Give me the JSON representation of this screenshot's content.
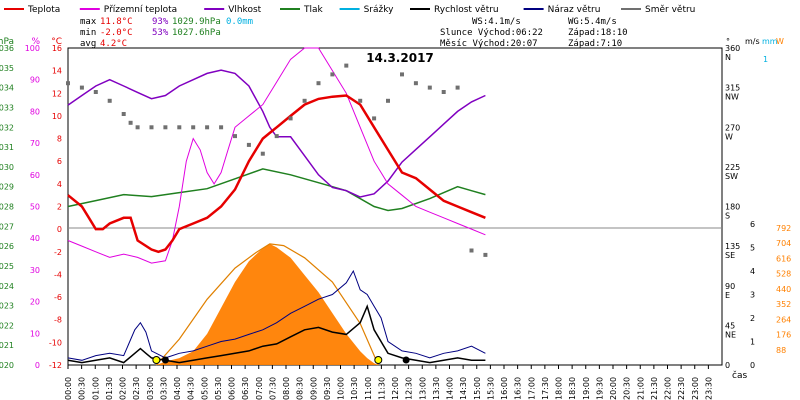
{
  "chart_data": {
    "type": "line",
    "title": "14.3.2017",
    "xlabel": "čas",
    "x_ticks": [
      "00:00",
      "00:30",
      "01:00",
      "01:30",
      "02:00",
      "02:30",
      "03:00",
      "03:30",
      "04:00",
      "04:30",
      "05:00",
      "05:30",
      "06:00",
      "06:30",
      "07:00",
      "07:30",
      "08:00",
      "08:30",
      "09:00",
      "09:30",
      "10:00",
      "10:30",
      "11:00",
      "11:30",
      "12:00",
      "12:30",
      "13:00",
      "13:30",
      "14:00",
      "14:30",
      "15:00",
      "15:30",
      "16:00",
      "16:30",
      "17:00",
      "17:30",
      "18:00",
      "18:30",
      "19:00",
      "19:30",
      "20:00",
      "20:30",
      "21:00",
      "21:30",
      "22:00",
      "22:30",
      "23:00",
      "23:30"
    ],
    "legend": [
      {
        "label": "Teplota",
        "color": "#e60000"
      },
      {
        "label": "Přízemní teplota",
        "color": "#e000e0"
      },
      {
        "label": "Vlhkost",
        "color": "#8000c0"
      },
      {
        "label": "Tlak",
        "color": "#208020"
      },
      {
        "label": "Srážky",
        "color": "#00b0e0"
      },
      {
        "label": "Rychlost větru",
        "color": "#000000"
      },
      {
        "label": "Náraz větru",
        "color": "#000080"
      },
      {
        "label": "Směr větru",
        "color": "#707070"
      }
    ],
    "stats": {
      "max_label": "max",
      "min_label": "min",
      "avg_label": "avg",
      "max_temp": "11.8°C",
      "min_temp": "-2.0°C",
      "avg_temp": "4.2°C",
      "max_hum": "93%",
      "min_hum": "53%",
      "max_press": "1029.9hPa",
      "min_press": "1027.6hPa",
      "rain": "0.0mm",
      "ws": "WS:4.1m/s",
      "wg": "WG:5.4m/s",
      "sun_rise": "Slunce Východ:06:22",
      "sun_set": "Západ:18:10",
      "moon_rise": "Měsíc  Východ:20:07",
      "moon_set": "Západ:7:10"
    },
    "axes": {
      "hpa": {
        "label": "hPa",
        "ticks": [
          "1036",
          "1035",
          "1034",
          "1033",
          "1032",
          "1031",
          "1030",
          "1029",
          "1028",
          "1027",
          "1026",
          "1025",
          "1024",
          "1023",
          "1022",
          "1021",
          "1020"
        ]
      },
      "pct": {
        "label": "%",
        "ticks": [
          "100",
          "90",
          "80",
          "70",
          "60",
          "50",
          "40",
          "30",
          "20",
          "10",
          "0"
        ]
      },
      "degc": {
        "label": "°C",
        "ticks": [
          "16",
          "14",
          "12",
          "10",
          "8",
          "6",
          "4",
          "2",
          "0",
          "-2",
          "-4",
          "-6",
          "-8",
          "-10",
          "-12"
        ]
      },
      "dir": {
        "label": "°",
        "ticks": [
          {
            "v": "360",
            "d": "N"
          },
          {
            "v": "315",
            "d": "NW"
          },
          {
            "v": "270",
            "d": "W"
          },
          {
            "v": "225",
            "d": "SW"
          },
          {
            "v": "180",
            "d": "S"
          },
          {
            "v": "135",
            "d": "SE"
          },
          {
            "v": "90",
            "d": "E"
          },
          {
            "v": "45",
            "d": "NE"
          },
          {
            "v": "0",
            "d": ""
          }
        ]
      },
      "ms": {
        "label": "m/s",
        "ticks": [
          "6",
          "5",
          "4",
          "3",
          "2",
          "1",
          "0"
        ]
      },
      "mm": {
        "label": "mm",
        "ticks": [
          "1"
        ]
      },
      "wm2": {
        "label": "W",
        "ticks": [
          "792",
          "704",
          "616",
          "528",
          "440",
          "352",
          "264",
          "176",
          "88"
        ]
      }
    },
    "series": {
      "temperature": [
        [
          0,
          3
        ],
        [
          1,
          2
        ],
        [
          1.5,
          1
        ],
        [
          2,
          0
        ],
        [
          2.5,
          0
        ],
        [
          3,
          0.5
        ],
        [
          4,
          1
        ],
        [
          4.5,
          1
        ],
        [
          5,
          -1
        ],
        [
          6,
          -1.8
        ],
        [
          6.5,
          -2
        ],
        [
          7,
          -1.8
        ],
        [
          7.5,
          -1
        ],
        [
          8,
          0
        ],
        [
          9,
          0.5
        ],
        [
          10,
          1
        ],
        [
          11,
          2
        ],
        [
          12,
          3.5
        ],
        [
          13,
          6
        ],
        [
          14,
          8
        ],
        [
          14.5,
          8.5
        ],
        [
          15,
          9
        ],
        [
          16,
          10
        ],
        [
          17,
          11
        ],
        [
          18,
          11.5
        ],
        [
          19,
          11.7
        ],
        [
          20,
          11.8
        ],
        [
          21,
          11
        ],
        [
          22,
          9
        ],
        [
          23,
          7
        ],
        [
          24,
          5
        ],
        [
          25,
          4.5
        ],
        [
          26,
          3.5
        ],
        [
          27,
          2.5
        ],
        [
          28,
          2
        ],
        [
          29,
          1.5
        ],
        [
          30,
          1
        ]
      ],
      "ground_temp": [
        [
          0,
          -1
        ],
        [
          1,
          -1.5
        ],
        [
          2,
          -2
        ],
        [
          3,
          -2.5
        ],
        [
          4,
          -2.2
        ],
        [
          5,
          -2.5
        ],
        [
          6,
          -3
        ],
        [
          7,
          -2.8
        ],
        [
          7.5,
          -1
        ],
        [
          8,
          2
        ],
        [
          8.5,
          6
        ],
        [
          9,
          8
        ],
        [
          9.5,
          7
        ],
        [
          10,
          5
        ],
        [
          10.5,
          4
        ],
        [
          11,
          5
        ],
        [
          11.5,
          7
        ],
        [
          12,
          9
        ],
        [
          13,
          10
        ],
        [
          14,
          11
        ],
        [
          15,
          13
        ],
        [
          16,
          15
        ],
        [
          17,
          16
        ],
        [
          18,
          16
        ],
        [
          19,
          14
        ],
        [
          20,
          12
        ],
        [
          21,
          9
        ],
        [
          22,
          6
        ],
        [
          23,
          4
        ],
        [
          24,
          3
        ],
        [
          25,
          2
        ],
        [
          26,
          1.5
        ],
        [
          27,
          1
        ],
        [
          28,
          0.5
        ],
        [
          29,
          0
        ],
        [
          30,
          -0.5
        ]
      ],
      "humidity": [
        [
          0,
          82
        ],
        [
          1,
          85
        ],
        [
          2,
          88
        ],
        [
          3,
          90
        ],
        [
          4,
          88
        ],
        [
          5,
          86
        ],
        [
          6,
          84
        ],
        [
          7,
          85
        ],
        [
          8,
          88
        ],
        [
          9,
          90
        ],
        [
          10,
          92
        ],
        [
          11,
          93
        ],
        [
          12,
          92
        ],
        [
          13,
          88
        ],
        [
          14,
          80
        ],
        [
          14.5,
          75
        ],
        [
          15,
          72
        ],
        [
          16,
          72
        ],
        [
          17,
          66
        ],
        [
          18,
          60
        ],
        [
          19,
          56
        ],
        [
          20,
          55
        ],
        [
          21,
          53
        ],
        [
          22,
          54
        ],
        [
          23,
          58
        ],
        [
          24,
          64
        ],
        [
          25,
          68
        ],
        [
          26,
          72
        ],
        [
          27,
          76
        ],
        [
          28,
          80
        ],
        [
          29,
          83
        ],
        [
          30,
          85
        ]
      ],
      "pressure": [
        [
          0,
          1028.0
        ],
        [
          2,
          1028.3
        ],
        [
          4,
          1028.6
        ],
        [
          6,
          1028.5
        ],
        [
          8,
          1028.7
        ],
        [
          10,
          1028.9
        ],
        [
          12,
          1029.4
        ],
        [
          14,
          1029.9
        ],
        [
          16,
          1029.6
        ],
        [
          18,
          1029.2
        ],
        [
          20,
          1028.8
        ],
        [
          22,
          1028.0
        ],
        [
          23,
          1027.8
        ],
        [
          24,
          1027.9
        ],
        [
          26,
          1028.4
        ],
        [
          28,
          1029.0
        ],
        [
          29,
          1028.8
        ],
        [
          30,
          1028.6
        ]
      ],
      "solar": [
        [
          6.35,
          0
        ],
        [
          7,
          20
        ],
        [
          8,
          40
        ],
        [
          9,
          80
        ],
        [
          10,
          180
        ],
        [
          11,
          330
        ],
        [
          12,
          480
        ],
        [
          13,
          600
        ],
        [
          13.8,
          660
        ],
        [
          14.5,
          700
        ],
        [
          15,
          680
        ],
        [
          16,
          620
        ],
        [
          17,
          520
        ],
        [
          18,
          420
        ],
        [
          19,
          300
        ],
        [
          20,
          180
        ],
        [
          21,
          80
        ],
        [
          21.5,
          40
        ],
        [
          22,
          10
        ],
        [
          22.3,
          0
        ]
      ],
      "solar_clear": [
        [
          6.35,
          0
        ],
        [
          8,
          150
        ],
        [
          10,
          380
        ],
        [
          12,
          560
        ],
        [
          13.5,
          650
        ],
        [
          14.5,
          700
        ],
        [
          15.5,
          690
        ],
        [
          17,
          620
        ],
        [
          19,
          480
        ],
        [
          21,
          240
        ],
        [
          22.3,
          0
        ]
      ],
      "wind_speed": [
        [
          0,
          0.2
        ],
        [
          1,
          0.1
        ],
        [
          2,
          0.2
        ],
        [
          3,
          0.3
        ],
        [
          4,
          0.1
        ],
        [
          4.8,
          0.5
        ],
        [
          5.2,
          0.7
        ],
        [
          5.6,
          0.5
        ],
        [
          6,
          0.3
        ],
        [
          7,
          0.2
        ],
        [
          8,
          0.1
        ],
        [
          9,
          0.2
        ],
        [
          10,
          0.3
        ],
        [
          11,
          0.4
        ],
        [
          12,
          0.5
        ],
        [
          13,
          0.6
        ],
        [
          14,
          0.8
        ],
        [
          15,
          0.9
        ],
        [
          16,
          1.2
        ],
        [
          17,
          1.5
        ],
        [
          18,
          1.6
        ],
        [
          19,
          1.4
        ],
        [
          20,
          1.3
        ],
        [
          21,
          1.8
        ],
        [
          21.5,
          2.5
        ],
        [
          22,
          1.5
        ],
        [
          23,
          0.5
        ],
        [
          24,
          0.3
        ],
        [
          25,
          0.2
        ],
        [
          26,
          0.1
        ],
        [
          27,
          0.2
        ],
        [
          28,
          0.3
        ],
        [
          29,
          0.2
        ],
        [
          30,
          0.2
        ]
      ],
      "wind_gust": [
        [
          0,
          0.3
        ],
        [
          1,
          0.2
        ],
        [
          2,
          0.4
        ],
        [
          3,
          0.5
        ],
        [
          4,
          0.4
        ],
        [
          4.8,
          1.5
        ],
        [
          5.2,
          1.8
        ],
        [
          5.6,
          1.4
        ],
        [
          6,
          0.6
        ],
        [
          7,
          0.3
        ],
        [
          8,
          0.5
        ],
        [
          9,
          0.6
        ],
        [
          10,
          0.8
        ],
        [
          11,
          1.0
        ],
        [
          12,
          1.1
        ],
        [
          13,
          1.3
        ],
        [
          14,
          1.5
        ],
        [
          15,
          1.8
        ],
        [
          16,
          2.2
        ],
        [
          17,
          2.5
        ],
        [
          18,
          2.8
        ],
        [
          19,
          3.0
        ],
        [
          20,
          3.5
        ],
        [
          20.5,
          4.0
        ],
        [
          21,
          3.2
        ],
        [
          21.5,
          3.0
        ],
        [
          22,
          2.5
        ],
        [
          22.5,
          2.0
        ],
        [
          23,
          1.0
        ],
        [
          24,
          0.6
        ],
        [
          25,
          0.5
        ],
        [
          26,
          0.3
        ],
        [
          27,
          0.5
        ],
        [
          28,
          0.6
        ],
        [
          29,
          0.8
        ],
        [
          30,
          0.5
        ]
      ],
      "wind_dir": [
        [
          0,
          320
        ],
        [
          1,
          315
        ],
        [
          2,
          310
        ],
        [
          3,
          300
        ],
        [
          4,
          285
        ],
        [
          4.5,
          275
        ],
        [
          5,
          270
        ],
        [
          6,
          270
        ],
        [
          7,
          270
        ],
        [
          8,
          270
        ],
        [
          9,
          270
        ],
        [
          10,
          270
        ],
        [
          11,
          270
        ],
        [
          12,
          260
        ],
        [
          13,
          250
        ],
        [
          14,
          240
        ],
        [
          15,
          260
        ],
        [
          16,
          280
        ],
        [
          17,
          300
        ],
        [
          18,
          320
        ],
        [
          19,
          330
        ],
        [
          20,
          340
        ],
        [
          21,
          300
        ],
        [
          22,
          280
        ],
        [
          23,
          300
        ],
        [
          24,
          330
        ],
        [
          25,
          320
        ],
        [
          26,
          315
        ],
        [
          27,
          310
        ],
        [
          28,
          315
        ],
        [
          29,
          130
        ],
        [
          30,
          125
        ]
      ]
    }
  }
}
